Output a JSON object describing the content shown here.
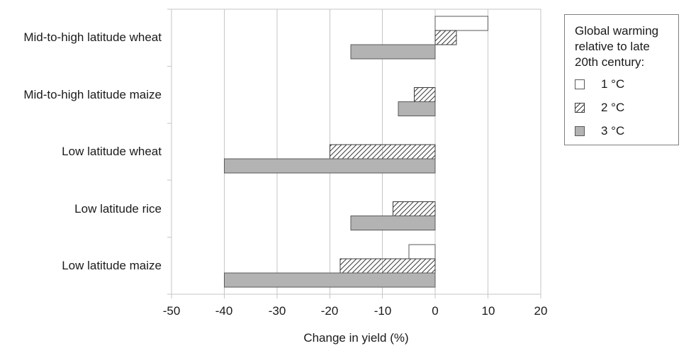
{
  "chart_data": {
    "type": "bar",
    "orientation": "horizontal",
    "title": "",
    "xlabel": "Change in yield (%)",
    "ylabel": "",
    "xlim": [
      -50,
      20
    ],
    "xticks": [
      -50,
      -40,
      -30,
      -20,
      -10,
      0,
      10,
      20
    ],
    "grid": true,
    "categories": [
      "Mid-to-high latitude wheat",
      "Mid-to-high latitude maize",
      "Low latitude wheat",
      "Low latitude rice",
      "Low latitude maize"
    ],
    "series": [
      {
        "name": "1 °C",
        "style": "white",
        "values": [
          10,
          0,
          0,
          0,
          -5
        ]
      },
      {
        "name": "2 °C",
        "style": "hatched",
        "values": [
          4,
          -4,
          -20,
          -8,
          -18
        ]
      },
      {
        "name": "3 °C",
        "style": "gray",
        "values": [
          -16,
          -7,
          -40,
          -16,
          -40
        ]
      }
    ],
    "legend": {
      "title": "Global warming relative to late 20th century:",
      "position": "right"
    }
  },
  "colors": {
    "text": "#1a1a1a",
    "gridline": "#c6c6c6",
    "bar_border": "#595959",
    "hatch_line": "#3a3a3a",
    "gray_fill": "#b3b3b3",
    "legend_border": "#7f7f7f",
    "background": "#ffffff"
  }
}
